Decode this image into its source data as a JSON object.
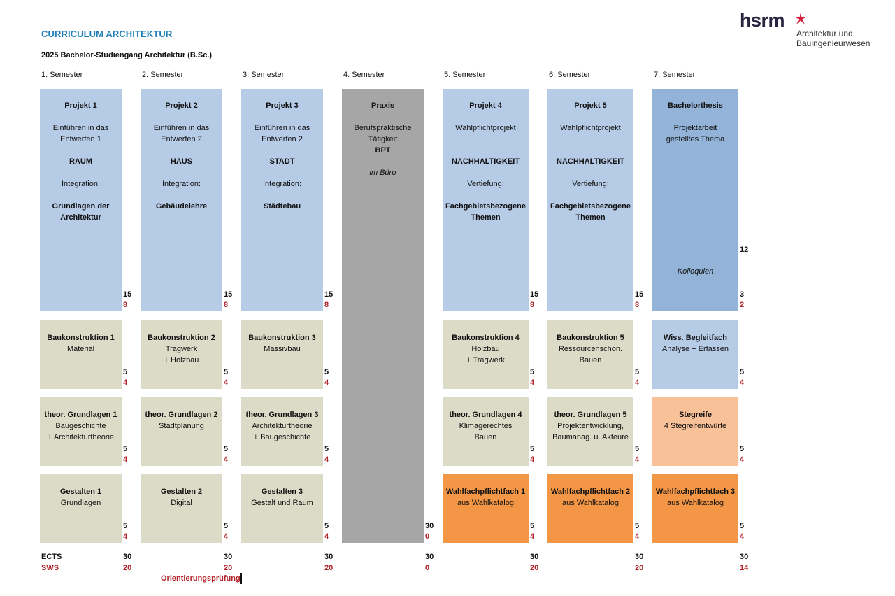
{
  "header": {
    "title": "CURRICULUM ARCHITEKTUR",
    "subtitle": "2025 Bachelor-Studiengang Architektur (B.Sc.)"
  },
  "logo": {
    "word": "hsrm",
    "line1": "Architektur und",
    "line2": "Bauingenieurwesen",
    "icon": "star-mark-icon",
    "accent": "#d4213d"
  },
  "semesters": [
    "1. Semester",
    "2. Semester",
    "3. Semester",
    "4. Semester",
    "5. Semester",
    "6. Semester",
    "7. Semester"
  ],
  "colors": {
    "project": "#b6cbe6",
    "thesis": "#93b3d9",
    "construction": "#dcdbc8",
    "praxis": "#a6a6a6",
    "elective": "#f39646",
    "stegreife": "#f8c197",
    "title": "#1f7fb6",
    "sws": "#b0232a"
  },
  "modules": {
    "p1": {
      "lines": [
        "Projekt 1",
        "",
        "Einführen in das",
        "Entwerfen 1",
        "",
        "RAUM",
        "",
        "Integration:",
        "",
        "Grundlagen der",
        "Architektur"
      ],
      "ects": "15",
      "sws": "8"
    },
    "p2": {
      "lines": [
        "Projekt 2",
        "",
        "Einführen in das",
        "Entwerfen 2",
        "",
        "HAUS",
        "",
        "Integration:",
        "",
        "Gebäudelehre"
      ],
      "ects": "15",
      "sws": "8"
    },
    "p3": {
      "lines": [
        "Projekt 3",
        "",
        "Einführen in das",
        "Entwerfen 2",
        "",
        "STADT",
        "",
        "Integration:",
        "",
        "Städtebau"
      ],
      "ects": "15",
      "sws": "8"
    },
    "praxis": {
      "lines": [
        "Praxis",
        "",
        "Berufspraktische",
        "Tätigkeit",
        "BPT",
        "",
        "im Büro"
      ],
      "ects": "30",
      "sws": "0"
    },
    "p4": {
      "lines": [
        "Projekt 4",
        "",
        "Wahlpflichtprojekt",
        "",
        "",
        "NACHHALTIGKEIT",
        "",
        "Vertiefung:",
        "",
        "Fachgebietsbezogene",
        "Themen"
      ],
      "ects": "15",
      "sws": "8"
    },
    "p5": {
      "lines": [
        "Projekt 5",
        "",
        "Wahlpflichtprojekt",
        "",
        "",
        "NACHHALTIGKEIT",
        "",
        "Vertiefung:",
        "",
        "Fachgebietsbezogene",
        "Themen"
      ],
      "ects": "15",
      "sws": "8"
    },
    "thesis": {
      "lines": [
        "Bachelorthesis",
        "",
        "Projektarbeit",
        "gestelltes Thema"
      ],
      "ects": "12",
      "kolloquien": "Kolloquien",
      "k_ects": "3",
      "k_sws": "2"
    },
    "bk1": {
      "lines": [
        "Baukonstruktion 1",
        "Material"
      ],
      "ects": "5",
      "sws": "4"
    },
    "bk2": {
      "lines": [
        "Baukonstruktion 2",
        "Tragwerk",
        "+ Holzbau"
      ],
      "ects": "5",
      "sws": "4"
    },
    "bk3": {
      "lines": [
        "Baukonstruktion 3",
        "Massivbau"
      ],
      "ects": "5",
      "sws": "4"
    },
    "bk4": {
      "lines": [
        "Baukonstruktion 4",
        "Holzbau",
        "+ Tragwerk"
      ],
      "ects": "5",
      "sws": "4"
    },
    "bk5": {
      "lines": [
        "Baukonstruktion 5",
        "Ressourcenschon.",
        "Bauen"
      ],
      "ects": "5",
      "sws": "4"
    },
    "wb": {
      "lines": [
        "Wiss. Begleitfach",
        "Analyse + Erfassen"
      ],
      "ects": "5",
      "sws": "4"
    },
    "tg1": {
      "lines": [
        "theor. Grundlagen 1",
        "Baugeschichte",
        "+ Architekturtheorie"
      ],
      "ects": "5",
      "sws": "4"
    },
    "tg2": {
      "lines": [
        "theor. Grundlagen 2",
        "Stadtplanung"
      ],
      "ects": "5",
      "sws": "4"
    },
    "tg3": {
      "lines": [
        "theor. Grundlagen 3",
        "Architekturtheorie",
        "+ Baugeschichte"
      ],
      "ects": "5",
      "sws": "4"
    },
    "tg4": {
      "lines": [
        "theor. Grundlagen 4",
        "Klimagerechtes",
        "Bauen"
      ],
      "ects": "5",
      "sws": "4"
    },
    "tg5": {
      "lines": [
        "theor. Grundlagen 5",
        "Projektentwicklung,",
        "Baumanag. u. Akteure"
      ],
      "ects": "5",
      "sws": "4"
    },
    "sg": {
      "lines": [
        "Stegreife",
        "4 Stegreifentwürfe"
      ],
      "ects": "5",
      "sws": "4"
    },
    "g1": {
      "lines": [
        "Gestalten 1",
        "Grundlagen"
      ],
      "ects": "5",
      "sws": "4"
    },
    "g2": {
      "lines": [
        "Gestalten 2",
        "Digital"
      ],
      "ects": "5",
      "sws": "4"
    },
    "g3": {
      "lines": [
        "Gestalten 3",
        "Gestalt und Raum"
      ],
      "ects": "5",
      "sws": "4"
    },
    "w1": {
      "lines": [
        "Wahlfachpflichtfach 1",
        "aus Wahlkatalog"
      ],
      "ects": "5",
      "sws": "4"
    },
    "w2": {
      "lines": [
        "Wahlfachpflichtfach 2",
        "aus Wahlkatalog"
      ],
      "ects": "5",
      "sws": "4"
    },
    "w3": {
      "lines": [
        "Wahlfachpflichtfach 3",
        "aus Wahlkatalog"
      ],
      "ects": "5",
      "sws": "4"
    }
  },
  "totals": {
    "ects_label": "ECTS",
    "sws_label": "SWS",
    "ects": [
      "30",
      "30",
      "30",
      "30",
      "30",
      "30",
      "30"
    ],
    "sws": [
      "20",
      "20",
      "20",
      "0",
      "20",
      "20",
      "14"
    ]
  },
  "footer": {
    "orientierung": "Orientierungsprüfung"
  }
}
